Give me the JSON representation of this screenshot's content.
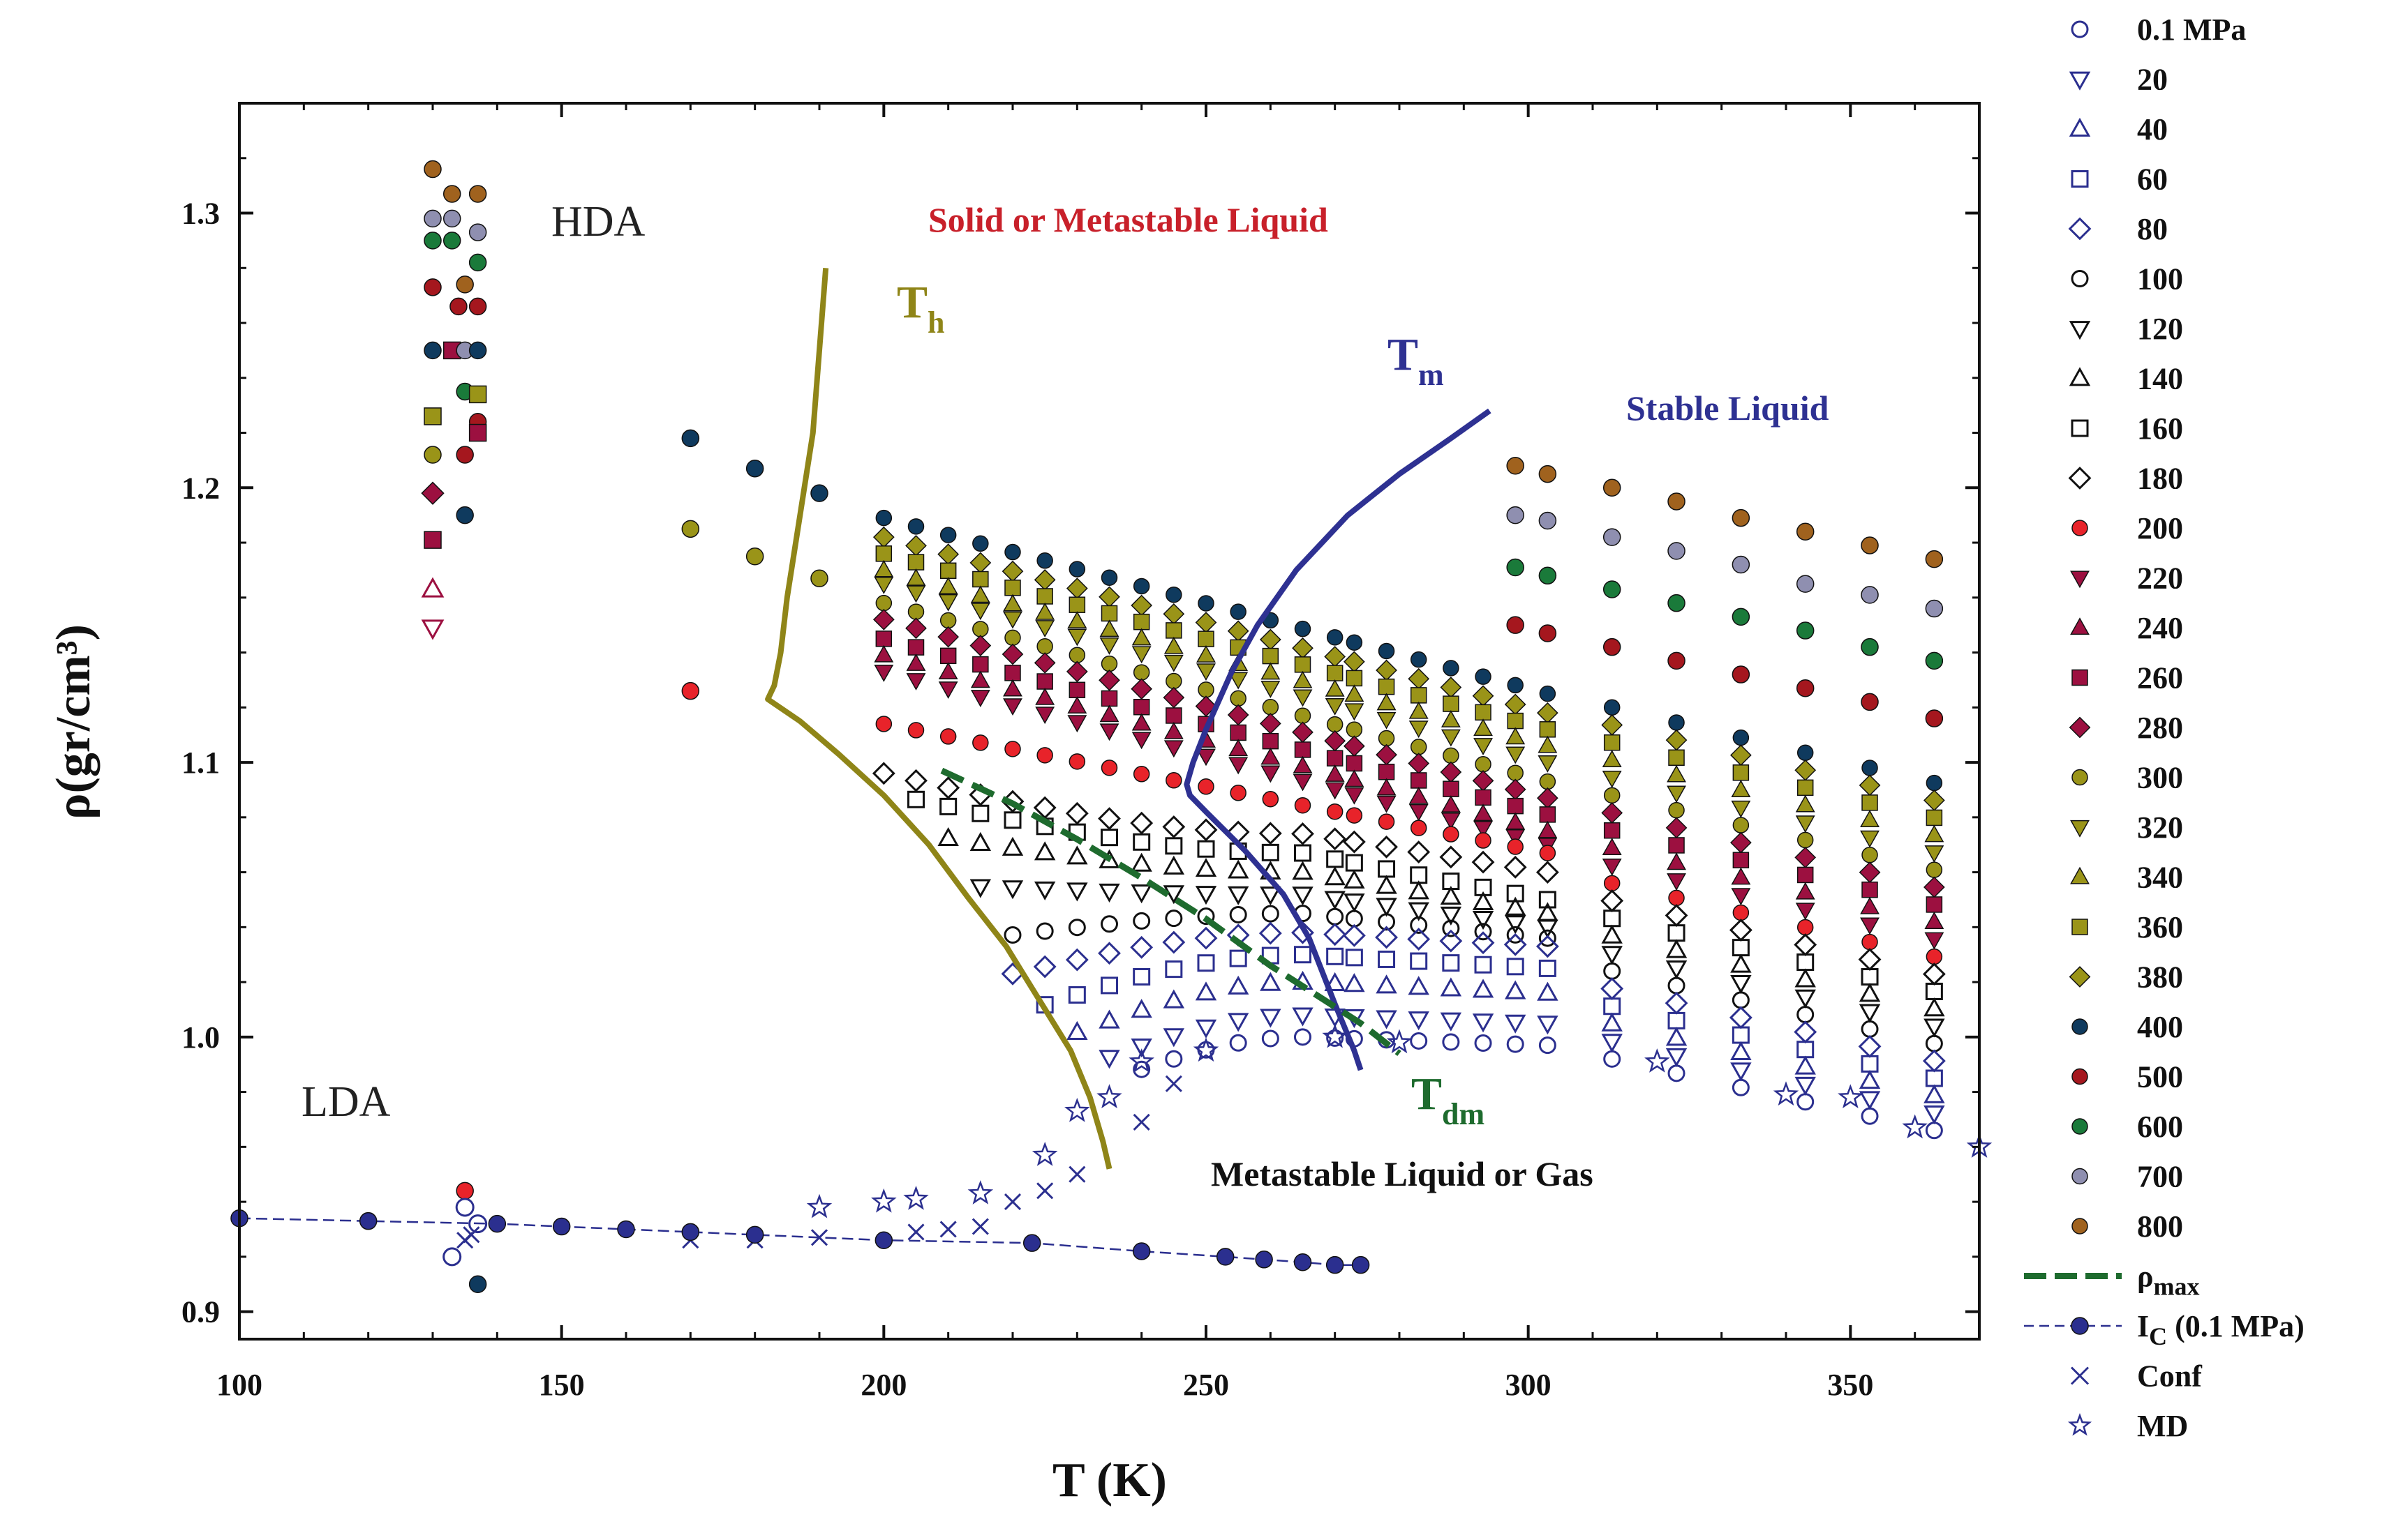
{
  "chart_data": {
    "type": "scatter",
    "title": "",
    "xlabel": "T (K)",
    "ylabel": "ρ(gr/cm³)",
    "xlim": [
      100,
      370
    ],
    "ylim": [
      0.89,
      1.34
    ],
    "x_ticks": [
      "100",
      "150",
      "200",
      "250",
      "300",
      "350"
    ],
    "y_ticks": [
      "0.9",
      "1.0",
      "1.1",
      "1.2",
      "1.3"
    ],
    "grid": false,
    "legend_position": "right",
    "region_labels": {
      "hda": "HDA",
      "lda": "LDA",
      "solid": "Solid or Metastable Liquid",
      "stable": "Stable Liquid",
      "gas": "Metastable Liquid or Gas"
    },
    "curve_labels": {
      "th": "T",
      "th_sub": "h",
      "tm": "T",
      "tm_sub": "m",
      "tdm": "T",
      "tdm_sub": "dm"
    },
    "pressure_series": [
      {
        "name": "0.1 MPa",
        "marker": "circle-open",
        "color": "#2b2f8f"
      },
      {
        "name": "20",
        "marker": "tri-down-open",
        "color": "#2b2f8f"
      },
      {
        "name": "40",
        "marker": "tri-up-open",
        "color": "#2b2f8f"
      },
      {
        "name": "60",
        "marker": "square-open",
        "color": "#2b2f8f"
      },
      {
        "name": "80",
        "marker": "diamond-open",
        "color": "#2b2f8f"
      },
      {
        "name": "100",
        "marker": "circle-open",
        "color": "#111111"
      },
      {
        "name": "120",
        "marker": "tri-down-open",
        "color": "#111111"
      },
      {
        "name": "140",
        "marker": "tri-up-open",
        "color": "#111111"
      },
      {
        "name": "160",
        "marker": "square-open",
        "color": "#111111"
      },
      {
        "name": "180",
        "marker": "diamond-open",
        "color": "#111111"
      },
      {
        "name": "200",
        "marker": "circle",
        "color": "#e8232a"
      },
      {
        "name": "220",
        "marker": "tri-down",
        "color": "#9c1040"
      },
      {
        "name": "240",
        "marker": "tri-up",
        "color": "#9c1040"
      },
      {
        "name": "260",
        "marker": "square",
        "color": "#9c1040"
      },
      {
        "name": "280",
        "marker": "diamond",
        "color": "#9c1040"
      },
      {
        "name": "300",
        "marker": "circle",
        "color": "#9a9418"
      },
      {
        "name": "320",
        "marker": "tri-down",
        "color": "#9a9418"
      },
      {
        "name": "340",
        "marker": "tri-up",
        "color": "#9a9418"
      },
      {
        "name": "360",
        "marker": "square",
        "color": "#9a9418"
      },
      {
        "name": "380",
        "marker": "diamond",
        "color": "#9a9418"
      },
      {
        "name": "400",
        "marker": "circle",
        "color": "#0f3a5e"
      },
      {
        "name": "500",
        "marker": "circle",
        "color": "#a5171e"
      },
      {
        "name": "600",
        "marker": "circle",
        "color": "#1a7a3a"
      },
      {
        "name": "700",
        "marker": "circle",
        "color": "#8f8fb0"
      },
      {
        "name": "800",
        "marker": "circle",
        "color": "#a0621e"
      }
    ],
    "line_legend": [
      {
        "name": "ρ",
        "sub": "max",
        "style": "dashed",
        "color": "#1e6b2e"
      },
      {
        "name": "I",
        "sub": "C",
        "suffix": " (0.1 MPa)",
        "style": "line-circle",
        "color": "#2b2f8f"
      },
      {
        "name": "Conf",
        "style": "cross",
        "color": "#2b2f8f"
      },
      {
        "name": "MD",
        "style": "star",
        "color": "#2b2f8f"
      }
    ],
    "curves": {
      "Th": {
        "color": "#8f8518",
        "x": [
          191,
          190,
          189,
          187,
          185,
          184,
          183,
          182,
          187,
          193,
          200,
          207,
          213,
          219,
          224,
          229,
          232,
          234,
          235
        ],
        "y": [
          1.28,
          1.25,
          1.22,
          1.19,
          1.16,
          1.14,
          1.128,
          1.123,
          1.115,
          1.103,
          1.088,
          1.07,
          1.051,
          1.033,
          1.014,
          0.995,
          0.978,
          0.962,
          0.952
        ]
      },
      "Tm": {
        "color": "#2e3192",
        "x": [
          294,
          288,
          280,
          272,
          264,
          258,
          254,
          250,
          248,
          247,
          247.5,
          250,
          256,
          262,
          266,
          270,
          273,
          274
        ],
        "y": [
          1.228,
          1.218,
          1.205,
          1.19,
          1.17,
          1.15,
          1.133,
          1.112,
          1.1,
          1.092,
          1.088,
          1.082,
          1.068,
          1.052,
          1.036,
          1.012,
          0.995,
          0.988
        ]
      },
      "rho_max": {
        "color": "#1e6b2e",
        "x": [
          209,
          220,
          230,
          240,
          250,
          260,
          268,
          274,
          280
        ],
        "y": [
          1.097,
          1.085,
          1.072,
          1.058,
          1.043,
          1.026,
          1.014,
          1.005,
          0.994
        ]
      },
      "Ic": {
        "color": "#2b2f8f",
        "x": [
          100,
          120,
          140,
          150,
          160,
          170,
          180,
          200,
          223,
          240,
          253,
          259,
          265,
          270,
          274
        ],
        "y": [
          0.934,
          0.933,
          0.932,
          0.931,
          0.93,
          0.929,
          0.928,
          0.926,
          0.925,
          0.922,
          0.92,
          0.919,
          0.918,
          0.917,
          0.917
        ]
      }
    },
    "isochores": [
      {
        "T": 200,
        "rho": [
          1.189,
          1.182,
          1.176,
          1.17,
          1.165,
          1.158,
          1.152,
          1.145,
          1.139,
          1.133,
          1.126,
          1.114,
          1.096
        ]
      },
      {
        "T": 273,
        "rho": [
          1.14,
          1.133,
          1.127,
          1.121,
          1.116,
          1.11,
          1.104,
          1.098,
          1.093,
          1.088,
          1.082,
          1.076,
          1.067,
          1.059,
          1.045,
          1.03,
          1.016,
          1.007,
          1.001
        ]
      },
      {
        "T": 303,
        "rho": [
          1.125,
          1.119,
          1.112,
          1.106,
          1.1,
          1.093,
          1.087,
          1.081,
          1.075,
          1.07,
          1.064,
          1.057,
          1.047,
          1.037,
          1.025,
          1.016,
          1.005,
          0.998
        ]
      },
      {
        "T": 363,
        "rho": [
          1.174,
          1.156,
          1.137,
          1.116,
          1.094,
          1.089,
          1.084,
          1.078,
          1.073,
          1.068,
          1.062,
          1.057,
          1.051,
          1.045,
          1.038,
          1.032,
          1.023,
          1.014,
          1.005,
          0.996,
          0.988,
          0.978,
          0.966
        ]
      }
    ],
    "md_points": {
      "x": [
        190,
        200,
        205,
        215,
        225,
        230,
        235,
        240,
        250,
        270,
        280,
        320,
        340,
        350,
        360,
        370
      ],
      "y": [
        0.938,
        0.94,
        0.941,
        0.943,
        0.957,
        0.973,
        0.978,
        0.991,
        0.995,
        1.0,
        0.998,
        0.991,
        0.979,
        0.978,
        0.967,
        0.96
      ]
    }
  }
}
